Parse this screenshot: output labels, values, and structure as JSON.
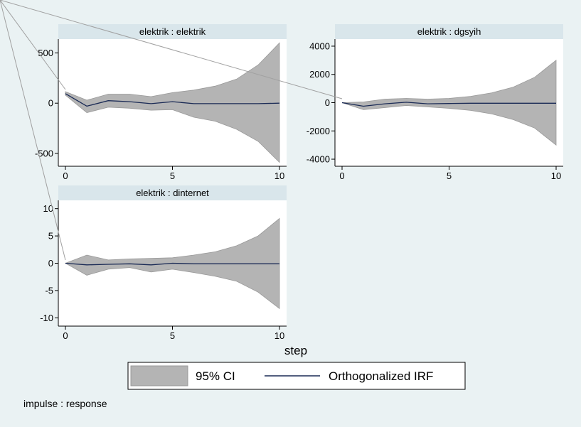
{
  "colors": {
    "background": "#eaf2f3",
    "plot_background": "#ffffff",
    "strip_background": "#d9e6eb",
    "ci_fill": "#b4b4b4",
    "ci_stroke": "#999999",
    "line": "#1a2a55",
    "frame": "#000000"
  },
  "chart_data": [
    {
      "type": "area",
      "title": "elektrik : elektrik",
      "x": [
        0,
        1,
        2,
        3,
        4,
        5,
        6,
        7,
        8,
        9,
        10
      ],
      "xticks": [
        0,
        5,
        10
      ],
      "yticks": [
        -500,
        0,
        500
      ],
      "ylim": [
        -600,
        610
      ],
      "series": [
        {
          "name": "95% CI",
          "lower": [
            80,
            -95,
            -40,
            -50,
            -70,
            -65,
            -140,
            -180,
            -260,
            -380,
            -590
          ],
          "upper": [
            115,
            30,
            90,
            90,
            65,
            105,
            130,
            170,
            240,
            380,
            600
          ]
        },
        {
          "name": "Orthogonalized IRF",
          "values": [
            95,
            -30,
            25,
            15,
            -5,
            15,
            -5,
            -5,
            -5,
            -5,
            0
          ]
        }
      ]
    },
    {
      "type": "area",
      "title": "elektrik : dgsyih",
      "x": [
        0,
        1,
        2,
        3,
        4,
        5,
        6,
        7,
        8,
        9,
        10
      ],
      "xticks": [
        0,
        5,
        10
      ],
      "yticks": [
        -4000,
        -2000,
        0,
        2000,
        4000
      ],
      "ylim": [
        -4300,
        4300
      ],
      "series": [
        {
          "name": "95% CI",
          "lower": [
            0,
            -500,
            -350,
            -200,
            -300,
            -400,
            -550,
            -800,
            -1200,
            -1800,
            -3000
          ],
          "upper": [
            0,
            50,
            250,
            300,
            250,
            300,
            450,
            700,
            1100,
            1800,
            3000
          ]
        },
        {
          "name": "Orthogonalized IRF",
          "values": [
            0,
            -250,
            -80,
            30,
            -80,
            -60,
            -40,
            -40,
            -40,
            -40,
            -40
          ]
        }
      ]
    },
    {
      "type": "area",
      "title": "elektrik : dinternet",
      "x": [
        0,
        1,
        2,
        3,
        4,
        5,
        6,
        7,
        8,
        9,
        10
      ],
      "xticks": [
        0,
        5,
        10
      ],
      "yticks": [
        -10,
        -5,
        0,
        5,
        10
      ],
      "ylim": [
        -11,
        11
      ],
      "series": [
        {
          "name": "95% CI",
          "lower": [
            0,
            -2.2,
            -1.1,
            -0.8,
            -1.6,
            -1.1,
            -1.7,
            -2.4,
            -3.3,
            -5.3,
            -8.3
          ],
          "upper": [
            0,
            1.5,
            0.6,
            0.8,
            0.9,
            1.0,
            1.5,
            2.1,
            3.2,
            5.0,
            8.2
          ]
        },
        {
          "name": "Orthogonalized IRF",
          "values": [
            0,
            -0.3,
            -0.2,
            -0.1,
            -0.3,
            0.0,
            -0.1,
            -0.1,
            -0.1,
            -0.1,
            -0.1
          ]
        }
      ]
    }
  ],
  "xlabel": "step",
  "legend": {
    "placement": "bottom-center",
    "items": [
      "95% CI",
      "Orthogonalized IRF"
    ]
  },
  "note": "impulse : response"
}
